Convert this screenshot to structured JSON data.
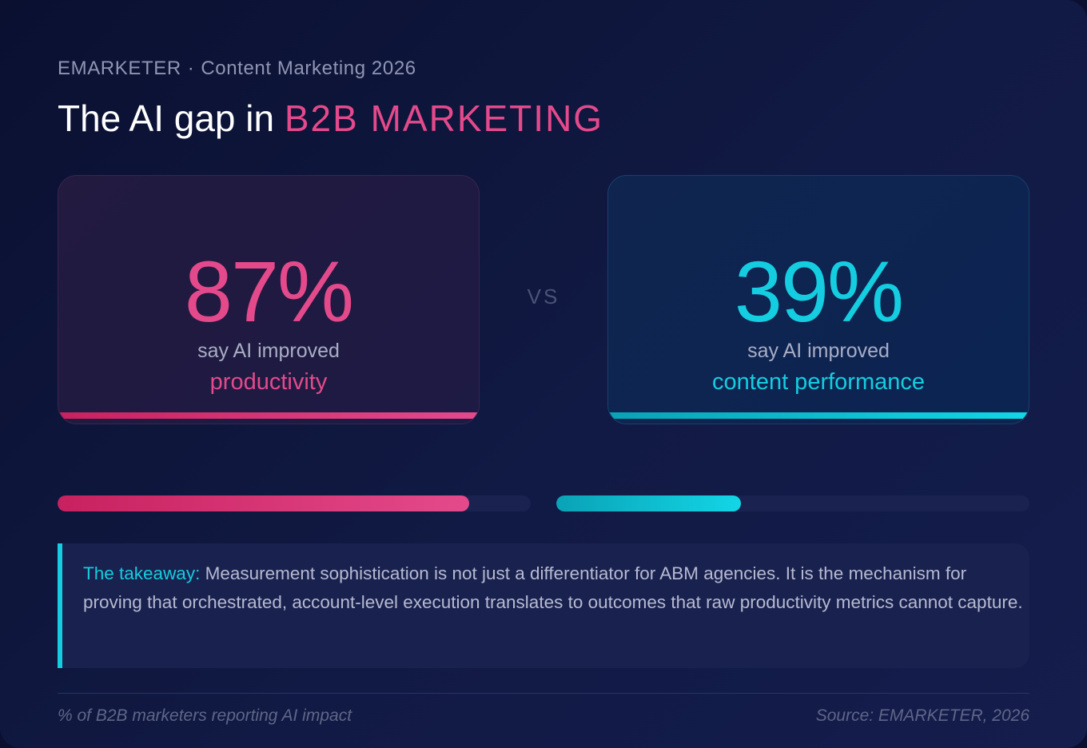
{
  "header": {
    "brand": "EMARKETER",
    "separator": "·",
    "report": "Content Marketing 2026",
    "title_prefix": "The AI gap in ",
    "title_accent": "B2B MARKETING"
  },
  "vs_label": "VS",
  "takeaway": {
    "lead": "The takeaway:",
    "body": " Measurement sophistication is not just a differentiator for ABM agencies. It is the mechanism for proving that orchestrated, account-level execution translates to outcomes that raw productivity metrics cannot capture."
  },
  "footer": {
    "note": "% of B2B marketers reporting AI impact",
    "source": "Source: EMARKETER, 2026"
  },
  "colors": {
    "productivity": "#e44a8b",
    "content_performance": "#14cde0",
    "background": "#111a44"
  },
  "chart_data": {
    "type": "bar",
    "orientation": "horizontal",
    "unit": "%",
    "ylim": [
      0,
      100
    ],
    "categories": [
      "productivity",
      "content performance"
    ],
    "values": [
      87,
      39
    ],
    "value_labels": [
      "87%",
      "39%"
    ],
    "captions": [
      "say AI improved",
      "say AI improved"
    ],
    "grid": false
  }
}
